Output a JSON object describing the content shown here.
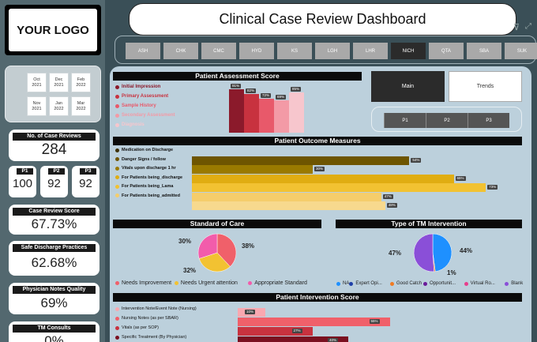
{
  "logo_text": "YOUR LOGO",
  "title": "Clinical Case Review Dashboard",
  "locations": [
    "ASH",
    "CHK",
    "CMC",
    "HYD",
    "KS",
    "LGH",
    "LHR",
    "NICH",
    "QTA",
    "SBA",
    "SUK"
  ],
  "selected_location": "NICH",
  "dates": [
    {
      "m": "Oct",
      "y": "2021"
    },
    {
      "m": "Dec",
      "y": "2021"
    },
    {
      "m": "Feb",
      "y": "2022"
    },
    {
      "m": "Nov",
      "y": "2021"
    },
    {
      "m": "Jan",
      "y": "2022"
    },
    {
      "m": "Mar",
      "y": "2022"
    }
  ],
  "cases": {
    "label": "No. of Case Reviews",
    "value": "284"
  },
  "priorities": [
    {
      "label": "P1",
      "value": "100"
    },
    {
      "label": "P2",
      "value": "92"
    },
    {
      "label": "P3",
      "value": "92"
    }
  ],
  "case_review_score": {
    "label": "Case Review Score",
    "value": "67.73%"
  },
  "safe_discharge": {
    "label": "Safe Discharge Practices",
    "value": "62.68%"
  },
  "physician_notes": {
    "label": "Physician Notes Quality",
    "value": "69%"
  },
  "tm_consults": {
    "label": "TM Consults",
    "value": "0%"
  },
  "view_buttons": {
    "main": "Main",
    "trends": "Trends"
  },
  "p_buttons": [
    "P1",
    "P2",
    "P3"
  ],
  "assessment": {
    "title": "Patient Assessment Score",
    "items": [
      {
        "label": "Initial Impression",
        "color": "#8b1a2b",
        "value": 91,
        "text": "91%"
      },
      {
        "label": "Primary Assessment",
        "color": "#c8323f",
        "value": 82,
        "text": "82%"
      },
      {
        "label": "Sample History",
        "color": "#e8596a",
        "value": 72,
        "text": "72%"
      },
      {
        "label": "Secondary Assessment",
        "color": "#f39aa6",
        "value": 69,
        "text": "69%"
      },
      {
        "label": "Diagnosis",
        "color": "#f7c6cd",
        "value": 85,
        "text": "85%"
      }
    ]
  },
  "outcome": {
    "title": "Patient Outcome Measures",
    "items": [
      {
        "label": "Medication on Discharge",
        "color": "#3d3000",
        "value": 0,
        "text": ""
      },
      {
        "label": "Danger Signs / follow",
        "color": "#6e5500",
        "value": 54,
        "text": "54%"
      },
      {
        "label": "Vitals upon discharge 1 hr",
        "color": "#9a7a00",
        "value": 30,
        "text": "30%"
      },
      {
        "label": "For Patients being_discharge",
        "color": "#e0ad12",
        "value": 65,
        "text": "65%"
      },
      {
        "label": "For Patients being_Lama",
        "color": "#f2c232",
        "value": 73,
        "text": "73%"
      },
      {
        "label": "For Patients being_admitted",
        "color": "#f5cd6b",
        "value": 47,
        "text": "47%"
      },
      {
        "label": "",
        "color": "#f7d98e",
        "value": 48,
        "text": "48%"
      }
    ]
  },
  "standard_of_care": {
    "title": "Standard of Care",
    "slices": [
      {
        "label": "Needs Improvement",
        "color": "#f0606a",
        "value": 38,
        "text": "38%"
      },
      {
        "label": "Needs Urgent attention",
        "color": "#f2c232",
        "value": 32,
        "text": "32%"
      },
      {
        "label": "Appropriate Standard",
        "color": "#f25cab",
        "value": 30,
        "text": "30%"
      }
    ]
  },
  "tm_intervention": {
    "title": "Type of TM Intervention",
    "slices": [
      {
        "label": "NA",
        "color": "#1e90ff",
        "value": 44,
        "text": "44%"
      },
      {
        "label": "Expert Opi...",
        "color": "#1f3fa8",
        "value": 0,
        "text": ""
      },
      {
        "label": "Good Catch",
        "color": "#f07b23",
        "value": 1,
        "text": "1%"
      },
      {
        "label": "Opportunit...",
        "color": "#6a1b9a",
        "value": 0,
        "text": ""
      },
      {
        "label": "Virtual Ro...",
        "color": "#e83e8c",
        "value": 0,
        "text": ""
      },
      {
        "label": "Blank",
        "color": "#8a4fd8",
        "value": 47,
        "text": "47%"
      }
    ]
  },
  "intervention": {
    "title": "Patient Intervention Score",
    "items": [
      {
        "label": "Intervention Note/Event Note (Nursing)",
        "color": "#f9a8b0",
        "value": 10,
        "text": "10%"
      },
      {
        "label": "Nursing Notes (as per SBAR)",
        "color": "#f0606a",
        "value": 55,
        "text": "55%"
      },
      {
        "label": "Vitals (as per SOP)",
        "color": "#c8323f",
        "value": 27,
        "text": "27%"
      },
      {
        "label": "Specific Treatment (By Physician)",
        "color": "#7a1020",
        "value": 40,
        "text": "40%"
      }
    ]
  }
}
